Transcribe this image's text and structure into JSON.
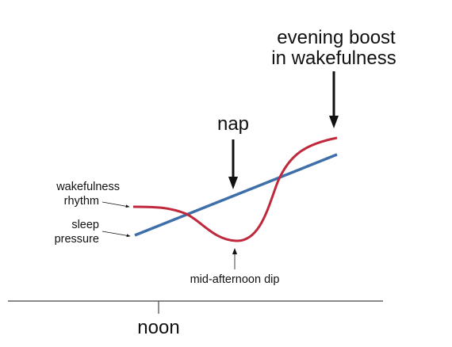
{
  "colors": {
    "wakefulness_rhythm": "#c0283c",
    "sleep_pressure": "#3f6fa8",
    "text": "#111111",
    "axis": "#444444"
  },
  "labels": {
    "evening_boost_line1": "evening boost",
    "evening_boost_line2": "in wakefulness",
    "nap": "nap",
    "wakefulness_rhythm_line1": "wakefulness",
    "wakefulness_rhythm_line2": "rhythm",
    "sleep_pressure_line1": "sleep",
    "sleep_pressure_line2": "pressure",
    "mid_afternoon_dip": "mid-afternoon dip",
    "noon": "noon"
  },
  "icons": [
    "down-arrow-icon",
    "up-arrow-icon",
    "pointer-arrow-icon"
  ]
}
